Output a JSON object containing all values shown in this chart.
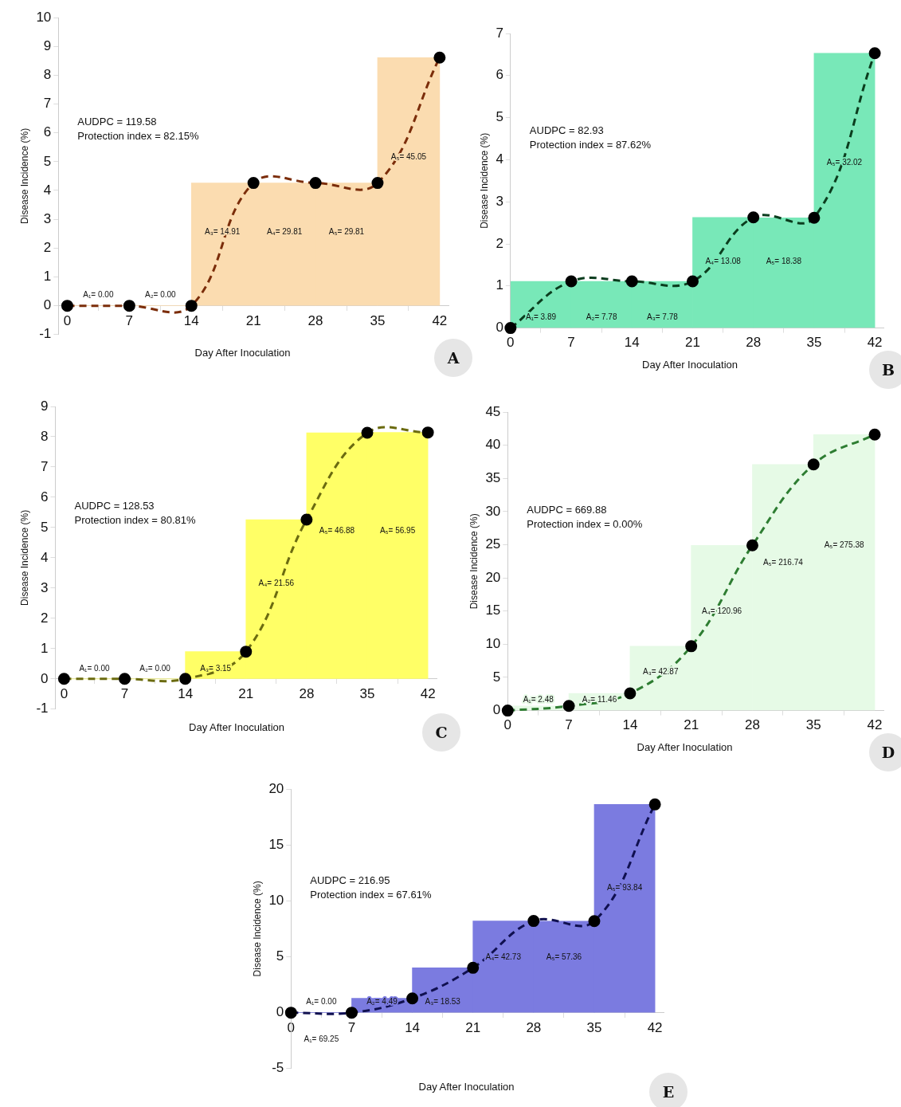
{
  "chart_data": [
    {
      "type": "histogram",
      "title": "A",
      "xlabel": "Day After Inoculation",
      "ylabel": "Disease Incidence (%)",
      "xlim": [
        -1,
        43
      ],
      "xticks": [
        0,
        7,
        14,
        21,
        28,
        35,
        42
      ],
      "ylim": [
        -1,
        10
      ],
      "yticks": [
        -1,
        0,
        1,
        2,
        3,
        4,
        5,
        6,
        7,
        8,
        9,
        10
      ],
      "grid": false,
      "legend": false,
      "marker": "circle",
      "line_style": "dashed",
      "series": [
        {
          "color": "#fbdcb0",
          "bins": [
            0,
            7,
            14,
            21,
            28,
            35,
            42
          ],
          "values": [
            0,
            0,
            4.26,
            4.26,
            4.26,
            8.61
          ]
        },
        {
          "type": "line",
          "color": "#7b2d0a",
          "x": [
            0,
            7,
            14,
            21,
            28,
            35,
            42
          ],
          "values": [
            0,
            0,
            0,
            4.26,
            4.26,
            4.26,
            8.61
          ]
        }
      ],
      "annotations": [
        "AUDPC = 119.58",
        "Protection index = 82.15%",
        "A₁= 0.00",
        "A₂= 0.00",
        "A₃= 14.91",
        "A₄= 29.81",
        "A₅= 29.81",
        "A₅= 45.05"
      ]
    },
    {
      "type": "histogram",
      "title": "B",
      "xlabel": "Day After Inoculation",
      "ylabel": "Disease Incidence (%)",
      "xlim": [
        0,
        43
      ],
      "xticks": [
        0,
        7,
        14,
        21,
        28,
        35,
        42
      ],
      "ylim": [
        0,
        7
      ],
      "yticks": [
        0,
        1,
        2,
        3,
        4,
        5,
        6,
        7
      ],
      "grid": false,
      "legend": false,
      "marker": "circle",
      "line_style": "dashed",
      "series": [
        {
          "color": "#78e8b8",
          "bins": [
            0,
            7,
            14,
            21,
            28,
            35,
            42
          ],
          "values": [
            1.11,
            1.11,
            1.11,
            2.63,
            2.62,
            6.53
          ]
        },
        {
          "type": "line",
          "color": "#0b3d1e",
          "x": [
            0,
            7,
            14,
            21,
            28,
            35,
            42
          ],
          "values": [
            0,
            1.11,
            1.11,
            1.11,
            2.63,
            2.62,
            6.53
          ]
        }
      ],
      "annotations": [
        "AUDPC = 82.93",
        "Protection index = 87.62%",
        "A₁= 3.89",
        "A₂= 7.78",
        "A₃= 7.78",
        "A₄= 13.08",
        "A₅= 18.38",
        "A₅= 32.02"
      ]
    },
    {
      "type": "histogram",
      "title": "C",
      "xlabel": "Day After Inoculation",
      "ylabel": "Disease Incidence (%)",
      "xlim": [
        -1,
        43
      ],
      "xticks": [
        0,
        7,
        14,
        21,
        28,
        35,
        42
      ],
      "ylim": [
        -1,
        9
      ],
      "yticks": [
        -1,
        0,
        1,
        2,
        3,
        4,
        5,
        6,
        7,
        8,
        9
      ],
      "grid": false,
      "legend": false,
      "marker": "circle",
      "line_style": "dashed",
      "series": [
        {
          "color": "#ffff66",
          "bins": [
            0,
            7,
            14,
            21,
            28,
            35,
            42
          ],
          "values": [
            0,
            0,
            0.9,
            5.26,
            8.13,
            8.14
          ]
        },
        {
          "type": "line",
          "color": "#6b6b10",
          "x": [
            0,
            7,
            14,
            21,
            28,
            35,
            42
          ],
          "values": [
            0,
            0,
            0,
            0.9,
            5.26,
            8.13,
            8.14
          ]
        }
      ],
      "annotations": [
        "AUDPC = 128.53",
        "Protection index = 80.81%",
        "A₁= 0.00",
        "A₂= 0.00",
        "A₃= 3.15",
        "A₄= 21.56",
        "A₅= 46.88",
        "A₅= 56.95"
      ]
    },
    {
      "type": "histogram",
      "title": "D",
      "xlabel": "Day After Inoculation",
      "ylabel": "Disease Incidence (%)",
      "xlim": [
        0,
        43
      ],
      "xticks": [
        0,
        7,
        14,
        21,
        28,
        35,
        42
      ],
      "ylim": [
        0,
        45
      ],
      "yticks": [
        0,
        5,
        10,
        15,
        20,
        25,
        30,
        35,
        40,
        45
      ],
      "grid": false,
      "legend": false,
      "marker": "circle",
      "line_style": "dashed",
      "series": [
        {
          "color": "#e6fae6",
          "bins": [
            0,
            7,
            14,
            21,
            28,
            35,
            42
          ],
          "values": [
            0.7,
            2.6,
            9.7,
            24.9,
            37.1,
            41.6
          ]
        },
        {
          "type": "line",
          "color": "#2e7d32",
          "x": [
            0,
            7,
            14,
            21,
            28,
            35,
            42
          ],
          "values": [
            0,
            0.7,
            2.6,
            9.7,
            24.9,
            37.1,
            41.6
          ]
        }
      ],
      "annotations": [
        "AUDPC = 669.88",
        "Protection index = 0.00%",
        "A₁= 2.48",
        "A₂= 11.46",
        "A₃= 42.87",
        "A₄= 120.96",
        "A₅= 216.74",
        "A₅= 275.38"
      ]
    },
    {
      "type": "histogram",
      "title": "E",
      "xlabel": "Day After Inoculation",
      "ylabel": "Disease Incidence (%)",
      "xlim": [
        0,
        43
      ],
      "xticks": [
        0,
        7,
        14,
        21,
        28,
        35,
        42
      ],
      "ylim": [
        -5,
        20
      ],
      "yticks": [
        -5,
        0,
        5,
        10,
        15,
        20
      ],
      "grid": false,
      "legend": false,
      "marker": "circle",
      "line_style": "dashed",
      "series": [
        {
          "color": "#7b7be0",
          "bins": [
            0,
            7,
            14,
            21,
            28,
            35,
            42
          ],
          "values": [
            0,
            1.28,
            4.01,
            8.2,
            8.19,
            18.62
          ]
        },
        {
          "type": "line",
          "color": "#101050",
          "x": [
            0,
            7,
            14,
            21,
            28,
            35,
            42
          ],
          "values": [
            0,
            0,
            1.28,
            4.01,
            8.2,
            8.19,
            18.62
          ]
        }
      ],
      "annotations": [
        "AUDPC = 216.95",
        "Protection index = 67.61%",
        "A₁= 0.00",
        "A₂= 4.49",
        "A₃= 18.53",
        "A₄= 42.73",
        "A₅= 57.36",
        "A₅= 93.84",
        "A₁= 69.25"
      ]
    }
  ]
}
